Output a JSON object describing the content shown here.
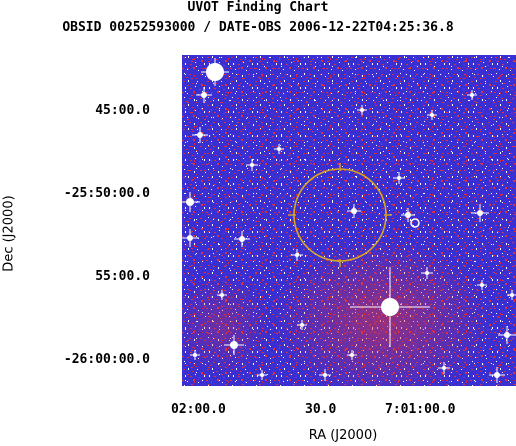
{
  "title": "UVOT Finding Chart",
  "subtitle": "OBSID 00252593000 / DATE-OBS 2006-12-22T04:25:36.8",
  "axes": {
    "xlabel": "RA (J2000)",
    "ylabel": "Dec (J2000)",
    "ra_ticks": [
      "02:00.0",
      "30.0",
      "7:01:00.0"
    ],
    "dec_ticks": [
      "45:00.0",
      "-25:50:00.0",
      "55:00.0",
      "-26:00:00.0"
    ]
  },
  "colors": {
    "background_blue": "#3a2fd0",
    "noise_red": "#e0303a",
    "noise_white": "#ffffff",
    "circle": "#d9a520"
  },
  "markers": {
    "error_circle": "yellow-circle",
    "target_mark": "small-white-circle"
  }
}
